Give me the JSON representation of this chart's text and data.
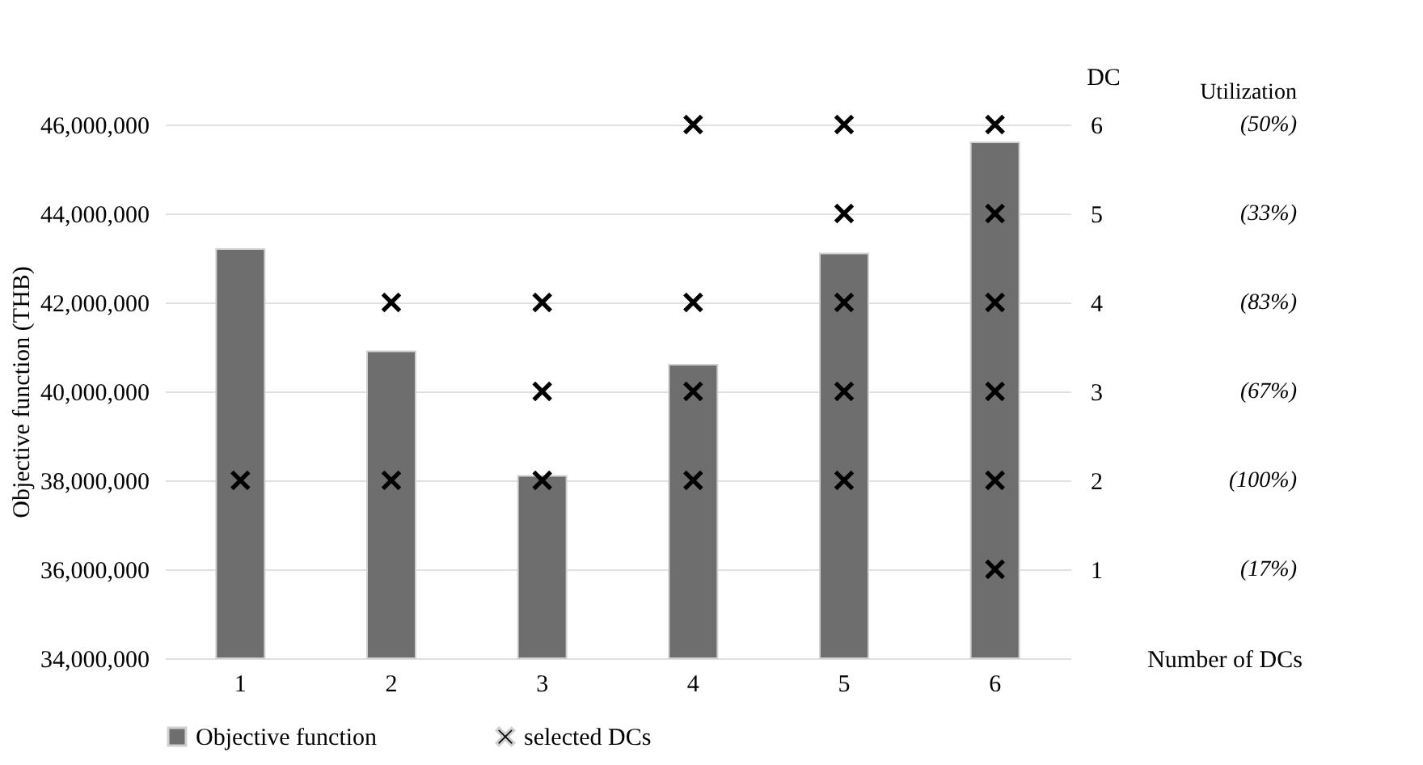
{
  "chart_data": {
    "type": "bar",
    "ylabel": "Objective function (THB)",
    "xlabel": "Number of DCs",
    "y2label": "DC",
    "categories": [
      "1",
      "2",
      "3",
      "4",
      "5",
      "6"
    ],
    "series": [
      {
        "name": "Objective function",
        "color": "#6e6e6e",
        "values": [
          43200000,
          40900000,
          38100000,
          40600000,
          43100000,
          45600000
        ]
      },
      {
        "name": "selected DCs",
        "type": "scatter",
        "axis": "y2",
        "color": "#000000",
        "x": [
          "1",
          "2",
          "2",
          "3",
          "3",
          "3",
          "4",
          "4",
          "4",
          "4",
          "5",
          "5",
          "5",
          "5",
          "5",
          "6",
          "6",
          "6",
          "6",
          "6",
          "6"
        ],
        "values": [
          2,
          2,
          4,
          2,
          3,
          4,
          2,
          3,
          4,
          6,
          2,
          3,
          4,
          5,
          6,
          1,
          2,
          3,
          4,
          5,
          6
        ]
      }
    ],
    "ylim": [
      34000000,
      46000000
    ],
    "yticks": [
      {
        "value": 34000000,
        "label": "34,000,000"
      },
      {
        "value": 36000000,
        "label": "36,000,000"
      },
      {
        "value": 38000000,
        "label": "38,000,000"
      },
      {
        "value": 40000000,
        "label": "40,000,000"
      },
      {
        "value": 42000000,
        "label": "42,000,000"
      },
      {
        "value": 44000000,
        "label": "44,000,000"
      },
      {
        "value": 46000000,
        "label": "46,000,000"
      }
    ],
    "y2lim": [
      0,
      6
    ],
    "y2ticks": [
      1,
      2,
      3,
      4,
      5,
      6
    ],
    "annotations": [
      "Utilization",
      "(50%)",
      "(33%)",
      "(83%)",
      "(67%)",
      "(100%)",
      "(17%)"
    ],
    "grid": "y",
    "legend": "bottom",
    "marker": "cross"
  }
}
